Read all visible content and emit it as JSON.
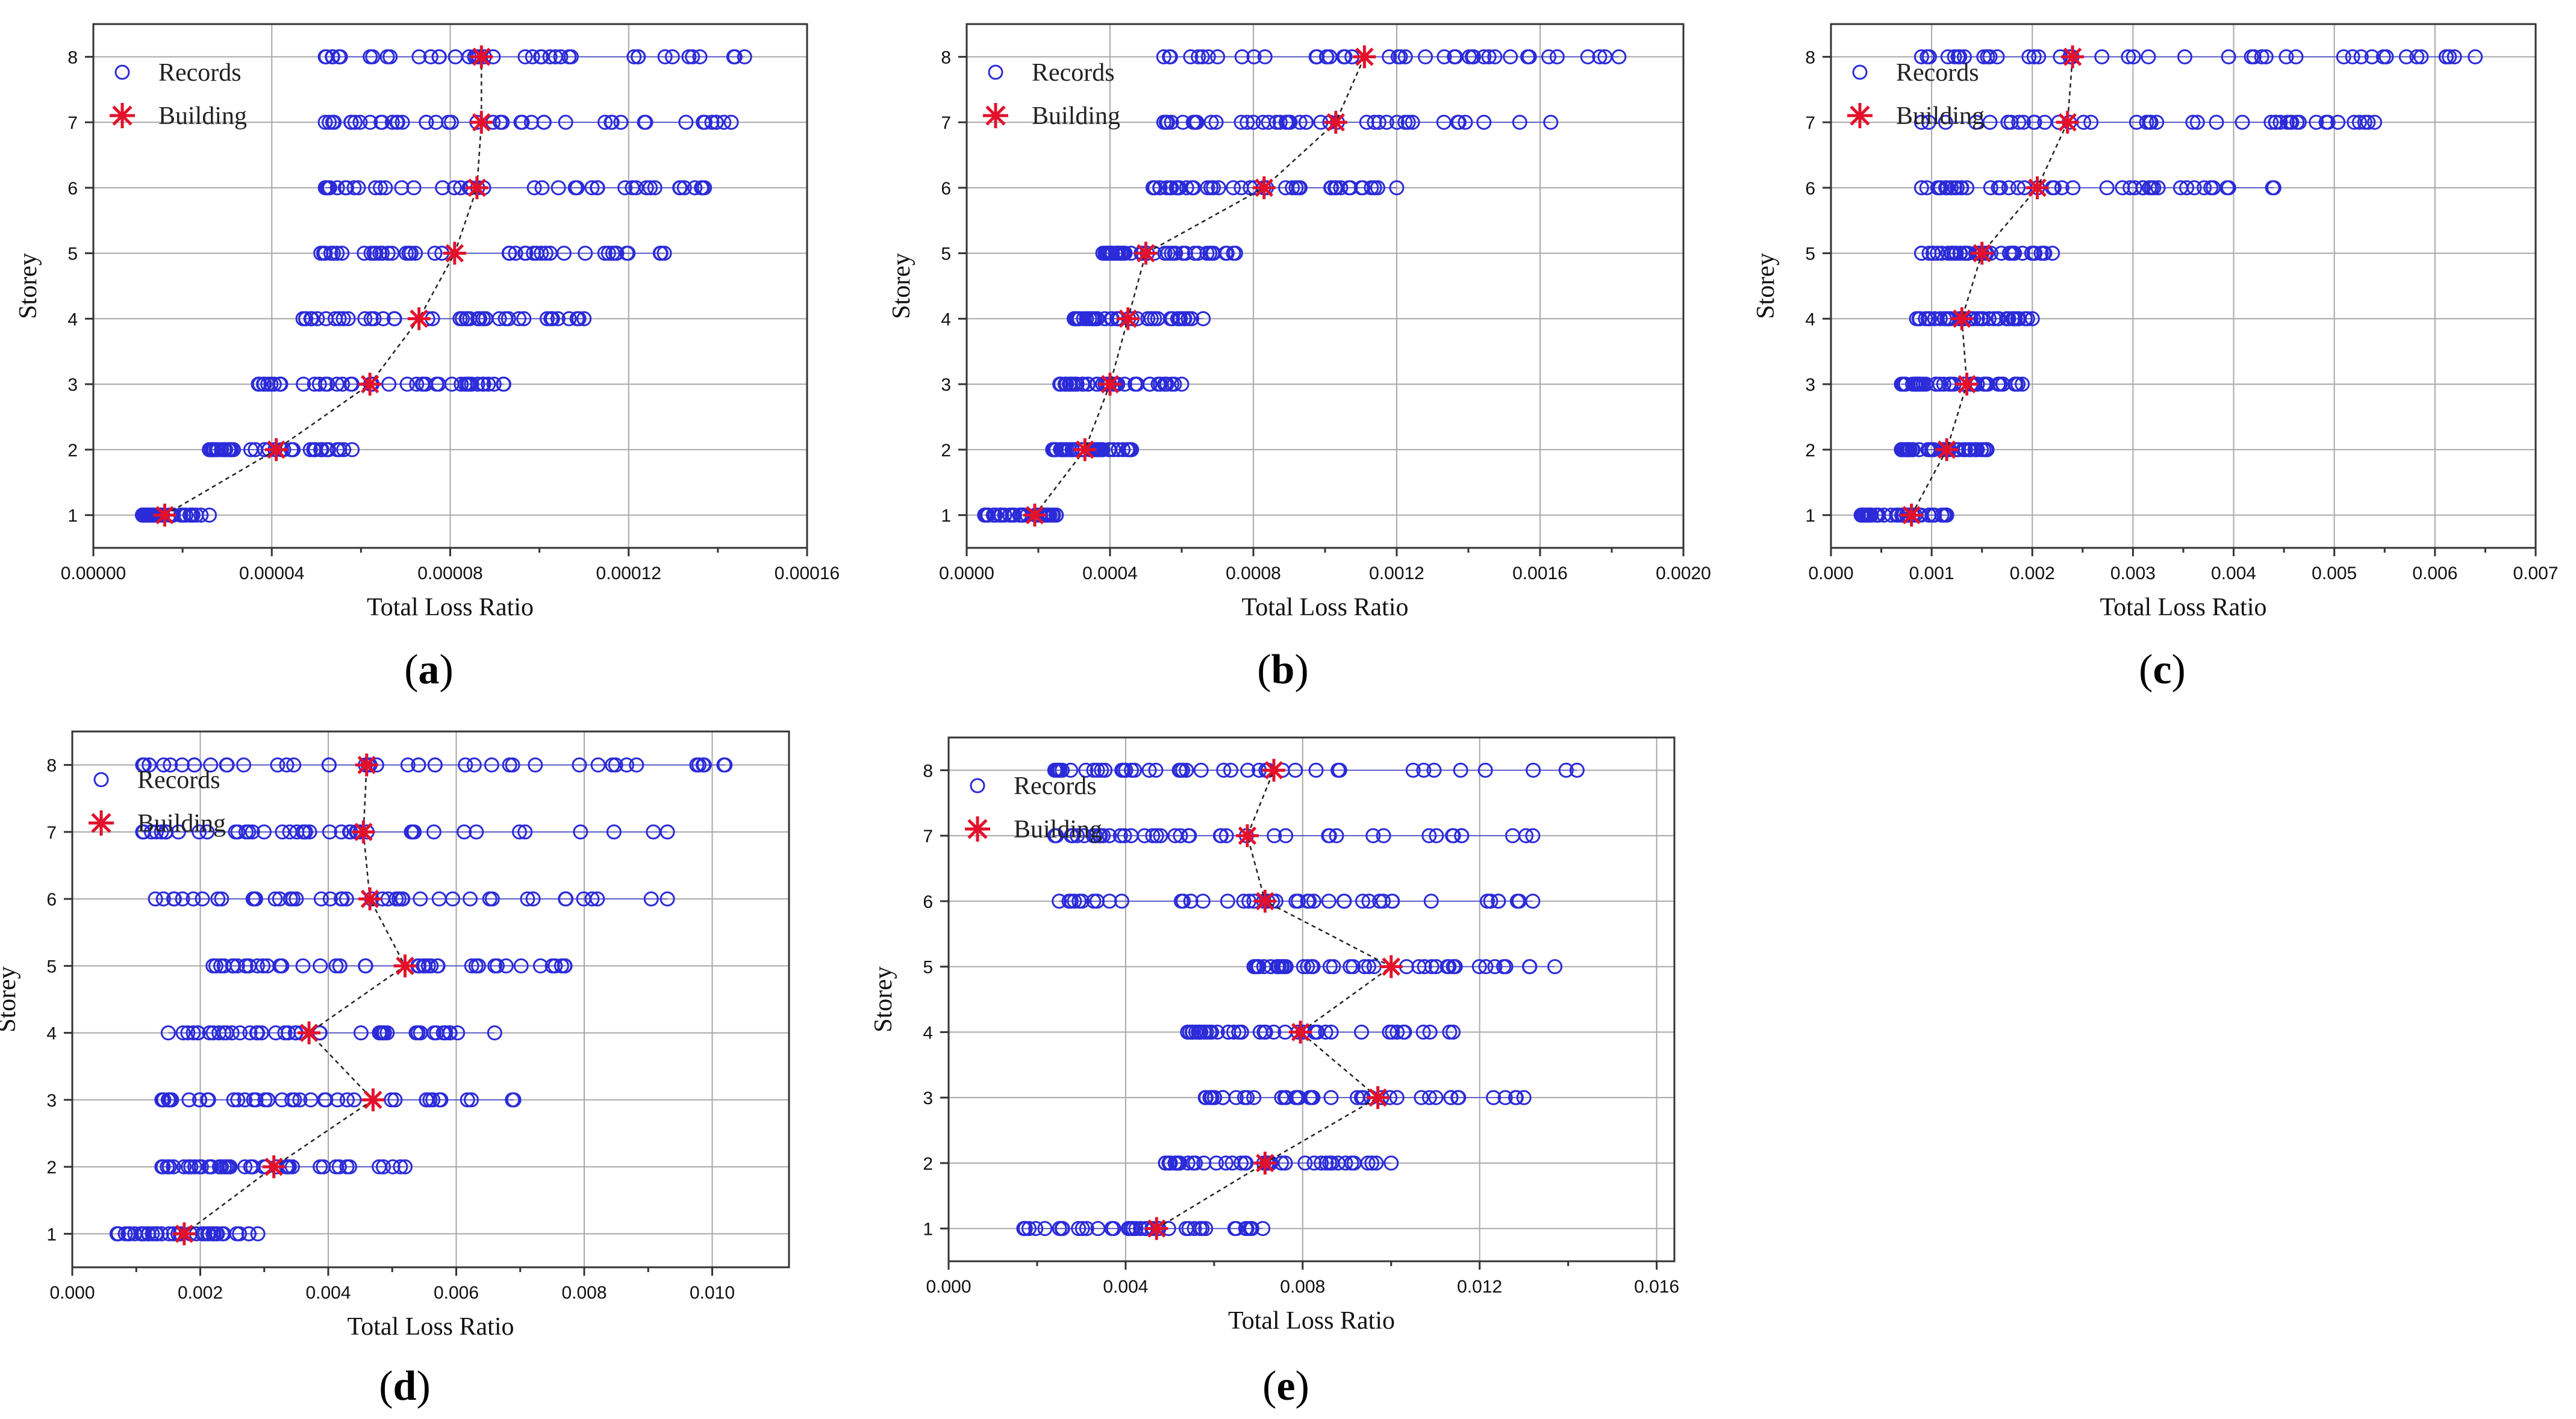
{
  "figure": {
    "colors": {
      "records": "#2b2bd9",
      "building": "#e3112b",
      "grid": "#a8a8a8",
      "axis": "#333333"
    }
  },
  "chart_data": [
    {
      "id": "a",
      "type": "scatter",
      "panel_label": "a",
      "xlabel": "Total Loss Ratio",
      "ylabel": "Storey",
      "xlim": [
        0,
        0.00016
      ],
      "ylim": [
        0.5,
        8.5
      ],
      "xticks": [
        0,
        4e-05,
        8e-05,
        0.00012,
        0.00016
      ],
      "xtick_labels": [
        "0.00000",
        "0.00004",
        "0.00008",
        "0.00012",
        "0.00016"
      ],
      "yticks": [
        1,
        2,
        3,
        4,
        5,
        6,
        7,
        8
      ],
      "ytick_labels": [
        "1",
        "2",
        "3",
        "4",
        "5",
        "6",
        "7",
        "8"
      ],
      "legend": [
        "Records",
        "Building"
      ],
      "legend_position": "top-left",
      "records_range": [
        [
          1.1e-05,
          2.6e-05
        ],
        [
          2.6e-05,
          5.8e-05
        ],
        [
          3.7e-05,
          9.2e-05
        ],
        [
          4.7e-05,
          0.00011
        ],
        [
          5.1e-05,
          0.000128
        ],
        [
          5.2e-05,
          0.000137
        ],
        [
          5.2e-05,
          0.000143
        ],
        [
          5.2e-05,
          0.000146
        ]
      ],
      "building": [
        1.6e-05,
        4.1e-05,
        6.2e-05,
        7.3e-05,
        8.1e-05,
        8.6e-05,
        8.7e-05,
        8.7e-05
      ]
    },
    {
      "id": "b",
      "type": "scatter",
      "panel_label": "b",
      "xlabel": "Total Loss Ratio",
      "ylabel": "Storey",
      "xlim": [
        0,
        0.002
      ],
      "ylim": [
        0.5,
        8.5
      ],
      "xticks": [
        0,
        0.0004,
        0.0008,
        0.0012,
        0.0016,
        0.002
      ],
      "xtick_labels": [
        "0.0000",
        "0.0004",
        "0.0008",
        "0.0012",
        "0.0016",
        "0.0020"
      ],
      "yticks": [
        1,
        2,
        3,
        4,
        5,
        6,
        7,
        8
      ],
      "ytick_labels": [
        "1",
        "2",
        "3",
        "4",
        "5",
        "6",
        "7",
        "8"
      ],
      "legend": [
        "Records",
        "Building"
      ],
      "legend_position": "top-left",
      "records_range": [
        [
          5e-05,
          0.00025
        ],
        [
          0.00024,
          0.00046
        ],
        [
          0.00026,
          0.0006
        ],
        [
          0.0003,
          0.00066
        ],
        [
          0.00038,
          0.00075
        ],
        [
          0.00052,
          0.0012
        ],
        [
          0.00055,
          0.00163
        ],
        [
          0.00055,
          0.00182
        ]
      ],
      "building": [
        0.00019,
        0.00033,
        0.0004,
        0.00045,
        0.0005,
        0.00083,
        0.00103,
        0.00111
      ]
    },
    {
      "id": "c",
      "type": "scatter",
      "panel_label": "c",
      "xlabel": "Total Loss Ratio",
      "ylabel": "Storey",
      "xlim": [
        0,
        0.007
      ],
      "ylim": [
        0.5,
        8.5
      ],
      "xticks": [
        0,
        0.001,
        0.002,
        0.003,
        0.004,
        0.005,
        0.006,
        0.007
      ],
      "xtick_labels": [
        "0.000",
        "0.001",
        "0.002",
        "0.003",
        "0.004",
        "0.005",
        "0.006",
        "0.007"
      ],
      "yticks": [
        1,
        2,
        3,
        4,
        5,
        6,
        7,
        8
      ],
      "ytick_labels": [
        "1",
        "2",
        "3",
        "4",
        "5",
        "6",
        "7",
        "8"
      ],
      "legend": [
        "Records",
        "Building"
      ],
      "legend_position": "top-left",
      "records_range": [
        [
          0.0003,
          0.00115
        ],
        [
          0.0007,
          0.00155
        ],
        [
          0.0007,
          0.0019
        ],
        [
          0.00085,
          0.002
        ],
        [
          0.0009,
          0.0022
        ],
        [
          0.0009,
          0.0044
        ],
        [
          0.0009,
          0.0054
        ],
        [
          0.0009,
          0.0064
        ]
      ],
      "building": [
        0.0008,
        0.00115,
        0.00135,
        0.0013,
        0.0015,
        0.00205,
        0.00235,
        0.0024
      ]
    },
    {
      "id": "d",
      "type": "scatter",
      "panel_label": "d",
      "xlabel": "Total Loss Ratio",
      "ylabel": "Storey",
      "xlim": [
        0,
        0.0112
      ],
      "ylim": [
        0.5,
        8.5
      ],
      "xticks": [
        0,
        0.002,
        0.004,
        0.006,
        0.008,
        0.01
      ],
      "xtick_labels": [
        "0.000",
        "0.002",
        "0.004",
        "0.006",
        "0.008",
        "0.010"
      ],
      "yticks": [
        1,
        2,
        3,
        4,
        5,
        6,
        7,
        8
      ],
      "ytick_labels": [
        "1",
        "2",
        "3",
        "4",
        "5",
        "6",
        "7",
        "8"
      ],
      "legend": [
        "Records",
        "Building"
      ],
      "legend_position": "top-left",
      "records_range": [
        [
          0.0007,
          0.0029
        ],
        [
          0.0014,
          0.0052
        ],
        [
          0.0014,
          0.0069
        ],
        [
          0.0015,
          0.0066
        ],
        [
          0.0022,
          0.0077
        ],
        [
          0.0013,
          0.0093
        ],
        [
          0.0011,
          0.0093
        ],
        [
          0.0011,
          0.0102
        ]
      ],
      "building": [
        0.00175,
        0.00315,
        0.0047,
        0.0037,
        0.0052,
        0.00465,
        0.00455,
        0.0046
      ]
    },
    {
      "id": "e",
      "type": "scatter",
      "panel_label": "e",
      "xlabel": "Total Loss Ratio",
      "ylabel": "Storey",
      "xlim": [
        0,
        0.0164
      ],
      "ylim": [
        0.5,
        8.5
      ],
      "xticks": [
        0,
        0.004,
        0.008,
        0.012,
        0.016
      ],
      "xtick_labels": [
        "0.000",
        "0.004",
        "0.008",
        "0.012",
        "0.016"
      ],
      "yticks": [
        1,
        2,
        3,
        4,
        5,
        6,
        7,
        8
      ],
      "ytick_labels": [
        "1",
        "2",
        "3",
        "4",
        "5",
        "6",
        "7",
        "8"
      ],
      "legend": [
        "Records",
        "Building"
      ],
      "legend_position": "top-left",
      "records_range": [
        [
          0.0017,
          0.0071
        ],
        [
          0.0049,
          0.01
        ],
        [
          0.0058,
          0.013
        ],
        [
          0.0054,
          0.0114
        ],
        [
          0.0069,
          0.0137
        ],
        [
          0.0025,
          0.0132
        ],
        [
          0.0024,
          0.0132
        ],
        [
          0.0024,
          0.0142
        ]
      ],
      "building": [
        0.0047,
        0.00715,
        0.0097,
        0.00795,
        0.01,
        0.00715,
        0.00675,
        0.00735
      ]
    }
  ]
}
